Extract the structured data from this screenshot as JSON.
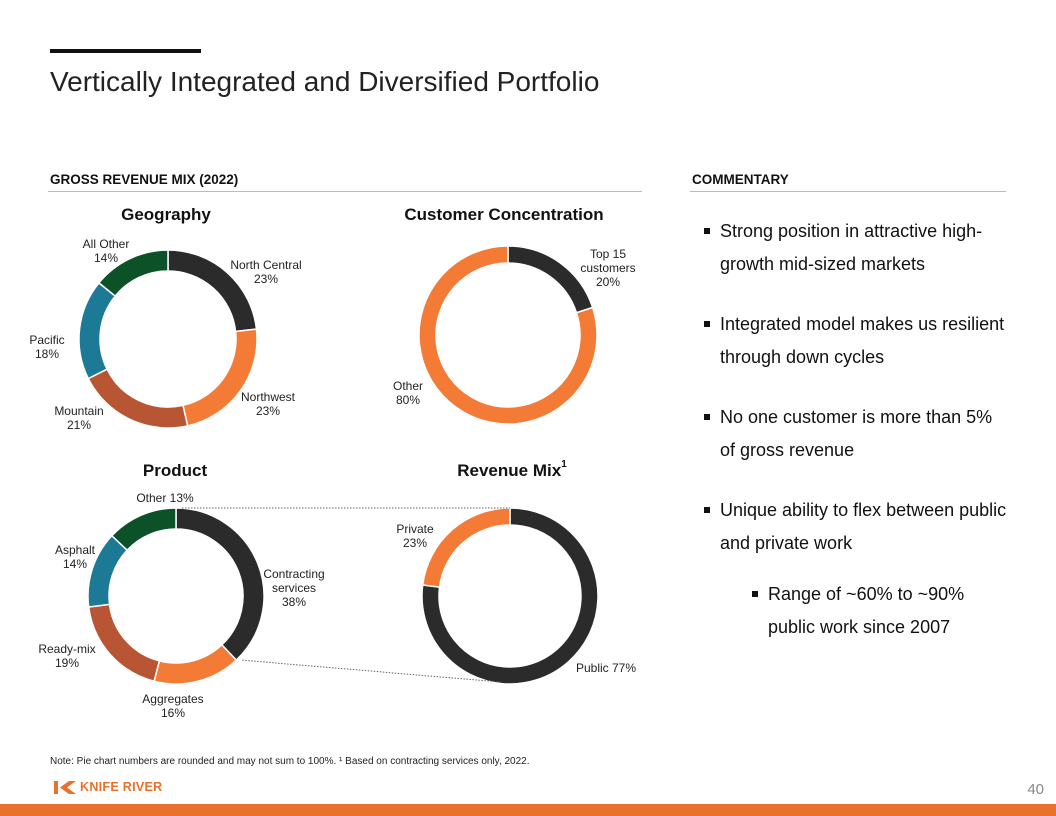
{
  "title": "Vertically Integrated and Diversified Portfolio",
  "left_section": "GROSS REVENUE MIX (2022)",
  "right_section": "COMMENTARY",
  "commentary": {
    "b1": "Strong position in attractive high-growth mid-sized markets",
    "b2": "Integrated model makes us resilient through down cycles",
    "b3": "No one customer is more than 5% of gross revenue",
    "b4": "Unique ability to flex between public and private work",
    "sub1": "Range of ~60% to ~90% public work since 2007"
  },
  "note": "Note: Pie chart numbers are rounded and may not sum to 100%. ¹ Based on contracting services only, 2022.",
  "logo_text": "KNIFE RIVER",
  "page_number": "40",
  "colors": {
    "black": "#2b2b2b",
    "orange": "#f47b36",
    "rust": "#b85533",
    "teal": "#1c7a96",
    "green": "#0c5128"
  },
  "chart_data": [
    {
      "type": "donut",
      "title": "Geography",
      "title_sup": "",
      "slices": [
        {
          "label": "North Central",
          "value": 23,
          "value_label": "23%",
          "color": "#2b2b2b"
        },
        {
          "label": "Northwest",
          "value": 23,
          "value_label": "23%",
          "color": "#f47b36"
        },
        {
          "label": "Mountain",
          "value": 21,
          "value_label": "21%",
          "color": "#b85533"
        },
        {
          "label": "Pacific",
          "value": 18,
          "value_label": "18%",
          "color": "#1c7a96"
        },
        {
          "label": "All Other",
          "value": 14,
          "value_label": "14%",
          "color": "#0c5128"
        }
      ]
    },
    {
      "type": "donut",
      "title": "Customer Concentration",
      "title_sup": "",
      "slices": [
        {
          "label": "Top 15 customers",
          "value": 20,
          "value_label": "20%",
          "color": "#2b2b2b"
        },
        {
          "label": "Other",
          "value": 80,
          "value_label": "80%",
          "color": "#f47b36"
        }
      ]
    },
    {
      "type": "donut",
      "title": "Product",
      "title_sup": "",
      "slices": [
        {
          "label": "Contracting services",
          "value": 38,
          "value_label": "38%",
          "color": "#2b2b2b"
        },
        {
          "label": "Aggregates",
          "value": 16,
          "value_label": "16%",
          "color": "#f47b36"
        },
        {
          "label": "Ready-mix",
          "value": 19,
          "value_label": "19%",
          "color": "#b85533"
        },
        {
          "label": "Asphalt",
          "value": 14,
          "value_label": "14%",
          "color": "#1c7a96"
        },
        {
          "label": "Other",
          "value": 13,
          "value_label": "13%",
          "color": "#0c5128"
        }
      ]
    },
    {
      "type": "donut",
      "title": "Revenue Mix",
      "title_sup": "1",
      "slices": [
        {
          "label": "Public",
          "value": 77,
          "value_label": "77%",
          "color": "#2b2b2b"
        },
        {
          "label": "Private",
          "value": 23,
          "value_label": "23%",
          "color": "#f47b36"
        }
      ]
    }
  ]
}
